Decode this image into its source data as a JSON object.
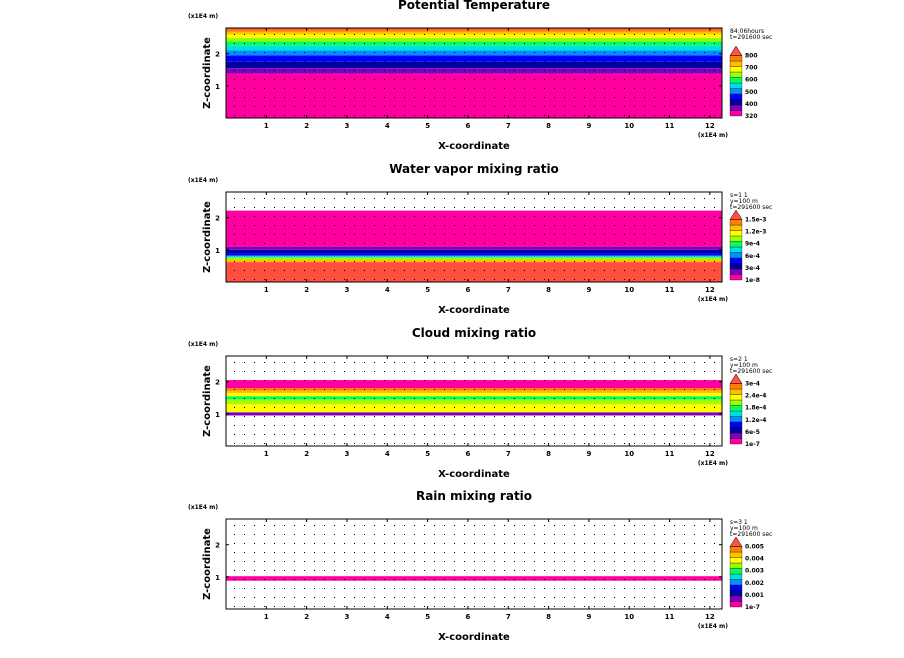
{
  "chart_data": [
    {
      "type": "heatmap",
      "title": "Potential Temperature",
      "xlabel": "X-coordinate",
      "ylabel": "Z-coordinate",
      "x_unit": "(x1E4 m)",
      "z_unit": "(x1E4 m)",
      "xlim": [
        0,
        12.3
      ],
      "ylim": [
        0,
        2.8
      ],
      "xticks": [
        1,
        2,
        3,
        4,
        5,
        6,
        7,
        8,
        9,
        10,
        11,
        12
      ],
      "yticks": [
        1,
        2
      ],
      "meta": [
        "84:06hours",
        "t=291600 sec"
      ],
      "colorbar_labels": [
        "320",
        "400",
        "500",
        "600",
        "700",
        "800"
      ],
      "colors": [
        "#ff00a0",
        "#8000c0",
        "#0000a0",
        "#0000ff",
        "#0090ff",
        "#00e0e0",
        "#00ff60",
        "#a0ff00",
        "#ffff00",
        "#ffc000",
        "#ff8000",
        "#ff5040"
      ],
      "bands": [
        {
          "z0": 0.0,
          "z1": 1.38,
          "color": "#ff00a0"
        },
        {
          "z0": 1.38,
          "z1": 1.55,
          "color": "#8000c0"
        },
        {
          "z0": 1.55,
          "z1": 1.75,
          "color": "#0000a0"
        },
        {
          "z0": 1.75,
          "z1": 1.95,
          "color": "#0000ff"
        },
        {
          "z0": 1.95,
          "z1": 2.1,
          "color": "#0090ff"
        },
        {
          "z0": 2.1,
          "z1": 2.25,
          "color": "#00e0e0"
        },
        {
          "z0": 2.25,
          "z1": 2.38,
          "color": "#00ff60"
        },
        {
          "z0": 2.38,
          "z1": 2.5,
          "color": "#a0ff00"
        },
        {
          "z0": 2.5,
          "z1": 2.6,
          "color": "#ffff00"
        },
        {
          "z0": 2.6,
          "z1": 2.68,
          "color": "#ffc000"
        },
        {
          "z0": 2.68,
          "z1": 2.75,
          "color": "#ff8000"
        },
        {
          "z0": 2.75,
          "z1": 2.8,
          "color": "#ff5040"
        }
      ]
    },
    {
      "type": "heatmap",
      "title": "Water vapor mixing ratio",
      "xlabel": "X-coordinate",
      "ylabel": "Z-coordinate",
      "x_unit": "(x1E4 m)",
      "z_unit": "(x1E4 m)",
      "xlim": [
        0,
        12.3
      ],
      "ylim": [
        0,
        2.8
      ],
      "xticks": [
        1,
        2,
        3,
        4,
        5,
        6,
        7,
        8,
        9,
        10,
        11,
        12
      ],
      "yticks": [
        1,
        2
      ],
      "meta": [
        "s=1 1",
        "y=100 m",
        "t=291600 sec"
      ],
      "colorbar_labels": [
        "1e-8",
        "3e-4",
        "6e-4",
        "9e-4",
        "1.2e-3",
        "1.5e-3"
      ],
      "colors": [
        "#ff00a0",
        "#8000c0",
        "#0000a0",
        "#0000ff",
        "#0090ff",
        "#00e0e0",
        "#00ff60",
        "#a0ff00",
        "#ffff00",
        "#ffc000",
        "#ff8000",
        "#ff5040"
      ],
      "bands": [
        {
          "z0": 0.0,
          "z1": 0.62,
          "color": "#ff5040"
        },
        {
          "z0": 0.62,
          "z1": 0.7,
          "color": "#ffc000"
        },
        {
          "z0": 0.7,
          "z1": 0.76,
          "color": "#a0ff00"
        },
        {
          "z0": 0.76,
          "z1": 0.82,
          "color": "#00e0e0"
        },
        {
          "z0": 0.82,
          "z1": 0.9,
          "color": "#0000ff"
        },
        {
          "z0": 0.9,
          "z1": 1.0,
          "color": "#0000a0"
        },
        {
          "z0": 1.0,
          "z1": 1.1,
          "color": "#8000c0"
        },
        {
          "z0": 1.1,
          "z1": 2.22,
          "color": "#ff00a0"
        }
      ]
    },
    {
      "type": "heatmap",
      "title": "Cloud mixing ratio",
      "xlabel": "X-coordinate",
      "ylabel": "Z-coordinate",
      "x_unit": "(x1E4 m)",
      "z_unit": "(x1E4 m)",
      "xlim": [
        0,
        12.3
      ],
      "ylim": [
        0,
        2.8
      ],
      "xticks": [
        1,
        2,
        3,
        4,
        5,
        6,
        7,
        8,
        9,
        10,
        11,
        12
      ],
      "yticks": [
        1,
        2
      ],
      "meta": [
        "s=2 1",
        "y=100 m",
        "t=291600 sec"
      ],
      "colorbar_labels": [
        "1e-7",
        "6e-5",
        "1.2e-4",
        "1.8e-4",
        "2.4e-4",
        "3e-4"
      ],
      "colors": [
        "#ff00a0",
        "#8000c0",
        "#0000a0",
        "#0000ff",
        "#0090ff",
        "#00e0e0",
        "#00ff60",
        "#a0ff00",
        "#ffff00",
        "#ffc000",
        "#ff8000",
        "#ff5040"
      ],
      "bands": [
        {
          "z0": 0.95,
          "z1": 1.05,
          "color": "#8000c0"
        },
        {
          "z0": 1.05,
          "z1": 1.3,
          "color": "#ffff00"
        },
        {
          "z0": 1.3,
          "z1": 1.45,
          "color": "#a0ff00"
        },
        {
          "z0": 1.45,
          "z1": 1.55,
          "color": "#00ff60"
        },
        {
          "z0": 1.55,
          "z1": 1.65,
          "color": "#ffff00"
        },
        {
          "z0": 1.65,
          "z1": 1.72,
          "color": "#ffc000"
        },
        {
          "z0": 1.72,
          "z1": 1.8,
          "color": "#ff8000"
        },
        {
          "z0": 1.8,
          "z1": 2.05,
          "color": "#ff00a0"
        }
      ]
    },
    {
      "type": "heatmap",
      "title": "Rain mixing ratio",
      "xlabel": "X-coordinate",
      "ylabel": "Z-coordinate",
      "x_unit": "(x1E4 m)",
      "z_unit": "(x1E4 m)",
      "xlim": [
        0,
        12.3
      ],
      "ylim": [
        0,
        2.8
      ],
      "xticks": [
        1,
        2,
        3,
        4,
        5,
        6,
        7,
        8,
        9,
        10,
        11,
        12
      ],
      "yticks": [
        1,
        2
      ],
      "meta": [
        "s=3 1",
        "y=100 m",
        "t=291600 sec"
      ],
      "colorbar_labels": [
        "1e-7",
        "0.001",
        "0.002",
        "0.003",
        "0.004",
        "0.005"
      ],
      "colors": [
        "#ff00a0",
        "#8000c0",
        "#0000a0",
        "#0000ff",
        "#0090ff",
        "#00e0e0",
        "#00ff60",
        "#a0ff00",
        "#ffff00",
        "#ffc000",
        "#ff8000",
        "#ff5040"
      ],
      "bands": [
        {
          "z0": 0.88,
          "z1": 1.02,
          "color": "#ff00a0"
        }
      ]
    }
  ]
}
